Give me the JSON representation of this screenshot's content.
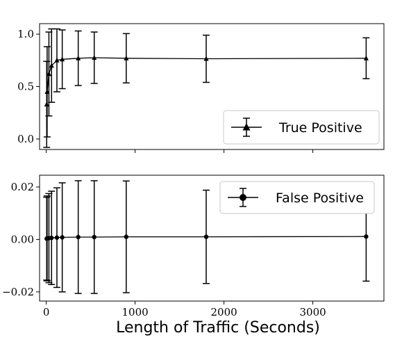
{
  "chart_data": [
    {
      "type": "line",
      "panel": "top",
      "xlabel": "",
      "ylabel": "",
      "xlim": [
        -75,
        3800
      ],
      "ylim": [
        -0.1,
        1.1
      ],
      "xticks": [
        0,
        1000,
        2000,
        3000
      ],
      "show_xtick_labels": false,
      "yticks": [
        0.0,
        0.5,
        1.0
      ],
      "ytick_labels": [
        "0.0",
        "0.5",
        "1.0"
      ],
      "grid": false,
      "legend_position": "lower-right",
      "series": [
        {
          "name": "True Positive",
          "marker": "triangle",
          "color": "#000000",
          "points": [
            {
              "x": 5,
              "y": 0.33,
              "err": 0.41
            },
            {
              "x": 10,
              "y": 0.45,
              "err": 0.43
            },
            {
              "x": 30,
              "y": 0.62,
              "err": 0.4
            },
            {
              "x": 60,
              "y": 0.7,
              "err": 0.35
            },
            {
              "x": 120,
              "y": 0.75,
              "err": 0.3
            },
            {
              "x": 180,
              "y": 0.76,
              "err": 0.28
            },
            {
              "x": 360,
              "y": 0.77,
              "err": 0.26
            },
            {
              "x": 540,
              "y": 0.775,
              "err": 0.245
            },
            {
              "x": 900,
              "y": 0.77,
              "err": 0.235
            },
            {
              "x": 1800,
              "y": 0.765,
              "err": 0.225
            },
            {
              "x": 3600,
              "y": 0.77,
              "err": 0.195
            }
          ]
        }
      ]
    },
    {
      "type": "line",
      "panel": "bottom",
      "xlabel": "Length of Traffic (Seconds)",
      "ylabel": "",
      "xlim": [
        -75,
        3800
      ],
      "ylim": [
        -0.0235,
        0.0245
      ],
      "xticks": [
        0,
        1000,
        2000,
        3000
      ],
      "xtick_labels": [
        "0",
        "1000",
        "2000",
        "3000"
      ],
      "show_xtick_labels": true,
      "yticks": [
        -0.02,
        0.0,
        0.02
      ],
      "ytick_labels": [
        "−0.02",
        "0.00",
        "0.02"
      ],
      "grid": false,
      "legend_position": "upper-right",
      "series": [
        {
          "name": "False Positive",
          "marker": "circle",
          "color": "#000000",
          "points": [
            {
              "x": 5,
              "y": 0.0003,
              "err": 0.0158
            },
            {
              "x": 10,
              "y": 0.0004,
              "err": 0.0162
            },
            {
              "x": 30,
              "y": 0.0005,
              "err": 0.017
            },
            {
              "x": 60,
              "y": 0.0006,
              "err": 0.0178
            },
            {
              "x": 120,
              "y": 0.0007,
              "err": 0.019
            },
            {
              "x": 180,
              "y": 0.0008,
              "err": 0.0208
            },
            {
              "x": 360,
              "y": 0.0009,
              "err": 0.0215
            },
            {
              "x": 540,
              "y": 0.0009,
              "err": 0.0215
            },
            {
              "x": 900,
              "y": 0.001,
              "err": 0.0213
            },
            {
              "x": 1800,
              "y": 0.001,
              "err": 0.0178
            },
            {
              "x": 3600,
              "y": 0.0011,
              "err": 0.017
            }
          ]
        }
      ]
    }
  ]
}
